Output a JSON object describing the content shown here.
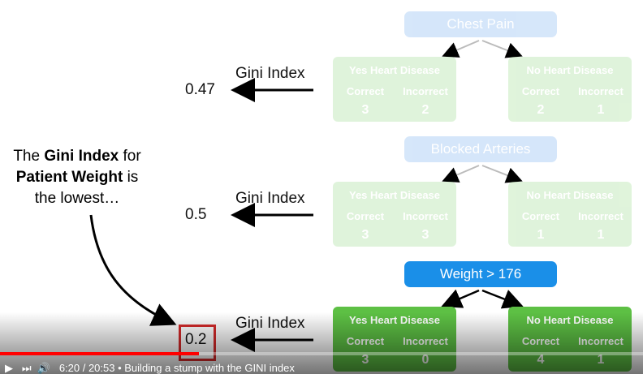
{
  "annotation": {
    "parts": [
      {
        "text": "The ",
        "bold": false
      },
      {
        "text": "Gini Index",
        "bold": true
      },
      {
        "text": " for",
        "bold": false
      },
      {
        "text": "Patient Weight",
        "bold": true
      },
      {
        "text": " is",
        "bold": false
      },
      {
        "text": "the lowest…",
        "bold": false
      }
    ]
  },
  "stumps": [
    {
      "root": "Chest Pain",
      "gini_label": "Gini Index",
      "gini": 0.47,
      "active": false,
      "leaves": [
        {
          "title": "Yes Heart Disease",
          "correct_label": "Correct",
          "incorrect_label": "Incorrect",
          "correct": 3,
          "incorrect": 2
        },
        {
          "title": "No Heart Disease",
          "correct_label": "Correct",
          "incorrect_label": "Incorrect",
          "correct": 2,
          "incorrect": 1
        }
      ]
    },
    {
      "root": "Blocked Arteries",
      "gini_label": "Gini Index",
      "gini": 0.5,
      "active": false,
      "leaves": [
        {
          "title": "Yes Heart Disease",
          "correct_label": "Correct",
          "incorrect_label": "Incorrect",
          "correct": 3,
          "incorrect": 3
        },
        {
          "title": "No Heart Disease",
          "correct_label": "Correct",
          "incorrect_label": "Incorrect",
          "correct": 1,
          "incorrect": 1
        }
      ]
    },
    {
      "root": "Weight > 176",
      "gini_label": "Gini Index",
      "gini": 0.2,
      "active": true,
      "leaves": [
        {
          "title": "Yes Heart Disease",
          "correct_label": "Correct",
          "incorrect_label": "Incorrect",
          "correct": 3,
          "incorrect": 0
        },
        {
          "title": "No Heart Disease",
          "correct_label": "Correct",
          "incorrect_label": "Incorrect",
          "correct": 4,
          "incorrect": 1
        }
      ]
    }
  ],
  "player": {
    "time": "6:20 / 20:53",
    "title": "Building a stump with the GINI index"
  }
}
